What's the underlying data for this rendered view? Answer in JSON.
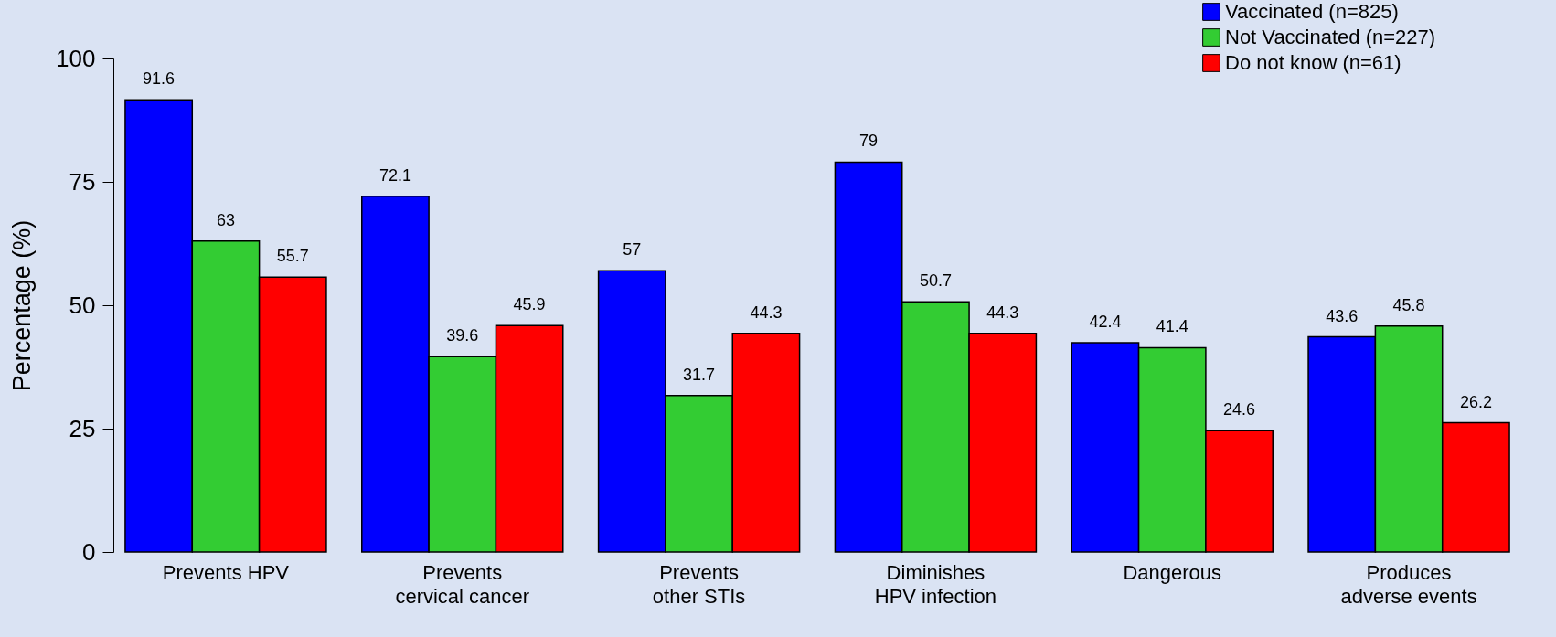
{
  "chart_data": {
    "type": "bar",
    "ylabel": "Percentage (%)",
    "categories": [
      "Prevents HPV",
      "Prevents\ncervical cancer",
      "Prevents\nother STIs",
      "Diminishes\nHPV infection",
      "Dangerous",
      "Produces\nadverse events"
    ],
    "series": [
      {
        "name": "Vaccinated (n=825)",
        "color": "#0000ff",
        "values": [
          91.6,
          72.1,
          57,
          79,
          42.4,
          43.6
        ]
      },
      {
        "name": "Not Vaccinated (n=227)",
        "color": "#33cc33",
        "values": [
          63,
          39.6,
          31.7,
          50.7,
          41.4,
          45.8
        ]
      },
      {
        "name": "Do not know (n=61)",
        "color": "#ff0000",
        "values": [
          55.7,
          45.9,
          44.3,
          44.3,
          24.6,
          26.2
        ]
      }
    ],
    "ylim": [
      0,
      100
    ],
    "yticks": [
      0,
      25,
      50,
      75,
      100
    ],
    "data_labels": true,
    "legend": "top right"
  }
}
